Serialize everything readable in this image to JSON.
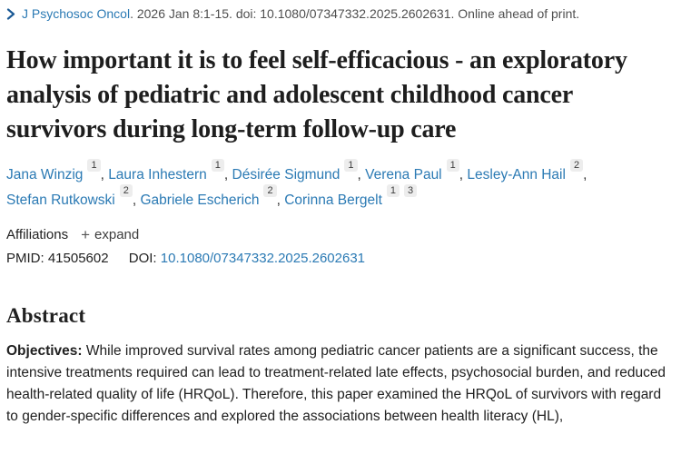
{
  "citation_bar": {
    "journal_link": "J Psychosoc Oncol",
    "citation_text": ". 2026 Jan 8:1-15. doi: 10.1080/07347332.2025.2602631. Online ahead of print."
  },
  "article": {
    "title": "How important it is to feel self-efficacious - an exploratory analysis of pediatric and adolescent childhood cancer survivors during long-term follow-up care",
    "authors": [
      {
        "name": "Jana Winzig",
        "affiliations": [
          "1"
        ]
      },
      {
        "name": "Laura Inhestern",
        "affiliations": [
          "1"
        ]
      },
      {
        "name": "Désirée Sigmund",
        "affiliations": [
          "1"
        ]
      },
      {
        "name": "Verena Paul",
        "affiliations": [
          "1"
        ]
      },
      {
        "name": "Lesley-Ann Hail",
        "affiliations": [
          "2"
        ]
      },
      {
        "name": "Stefan Rutkowski",
        "affiliations": [
          "2"
        ]
      },
      {
        "name": "Gabriele Escherich",
        "affiliations": [
          "2"
        ]
      },
      {
        "name": "Corinna Bergelt",
        "affiliations": [
          "1",
          "3"
        ]
      }
    ],
    "affiliations_label": "Affiliations",
    "expand_button_label": "expand",
    "plus_icon": "+",
    "identifiers": {
      "pmid_label": "PMID:",
      "pmid_value": "41505602",
      "doi_label": "DOI:",
      "doi_value": "10.1080/07347332.2025.2602631"
    }
  },
  "abstract": {
    "heading": "Abstract",
    "sections": [
      {
        "label": "Objectives:",
        "text": " While improved survival rates among pediatric cancer patients are a significant success, the intensive treatments required can lead to treatment-related late effects, psychosocial burden, and reduced health-related quality of life (HRQoL). Therefore, this paper examined the HRQoL of survivors with regard to gender-specific differences and explored the associations between health literacy (HL),"
      }
    ]
  },
  "colors": {
    "link_blue": "#2b7ab4",
    "chevron_blue": "#1b5a96",
    "text_dark": "#212121",
    "text_gray": "#4f4f4f",
    "badge_background": "#ededed"
  }
}
